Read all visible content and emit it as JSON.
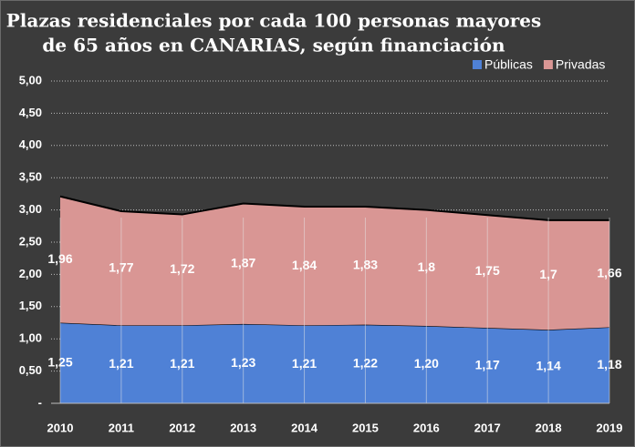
{
  "chart_data": {
    "type": "stacked_area",
    "title": [
      "Plazas residenciales por cada 100 personas mayores",
      "de 65 años en CANARIAS, según financiación"
    ],
    "categories": [
      "2010",
      "2011",
      "2012",
      "2013",
      "2014",
      "2015",
      "2016",
      "2017",
      "2018",
      "2019"
    ],
    "series": [
      {
        "name": "Públicas",
        "color": "#4f81d6",
        "values": [
          1.25,
          1.21,
          1.21,
          1.23,
          1.21,
          1.22,
          1.2,
          1.17,
          1.14,
          1.18
        ],
        "value_labels": [
          "1,25",
          "1,21",
          "1,21",
          "1,23",
          "1,21",
          "1,22",
          "1,20",
          "1,17",
          "1,14",
          "1,18"
        ]
      },
      {
        "name": "Privadas",
        "color": "#d99694",
        "values": [
          1.96,
          1.77,
          1.72,
          1.87,
          1.84,
          1.83,
          1.8,
          1.75,
          1.7,
          1.66
        ],
        "value_labels": [
          "1,96",
          "1,77",
          "1,72",
          "1,87",
          "1,84",
          "1,83",
          "1,8",
          "1,75",
          "1,7",
          "1,66"
        ]
      }
    ],
    "ylim": [
      0,
      5
    ],
    "yticks": [
      {
        "value": 0,
        "label": "-"
      },
      {
        "value": 0.5,
        "label": "0,50"
      },
      {
        "value": 1,
        "label": "1,00"
      },
      {
        "value": 1.5,
        "label": "1,50"
      },
      {
        "value": 2,
        "label": "2,00"
      },
      {
        "value": 2.5,
        "label": "2,50"
      },
      {
        "value": 3,
        "label": "3,00"
      },
      {
        "value": 3.5,
        "label": "3,50"
      },
      {
        "value": 4,
        "label": "4,00"
      },
      {
        "value": 4.5,
        "label": "4,50"
      },
      {
        "value": 5,
        "label": "5,00"
      }
    ],
    "grid": true,
    "legend": "top-right"
  }
}
